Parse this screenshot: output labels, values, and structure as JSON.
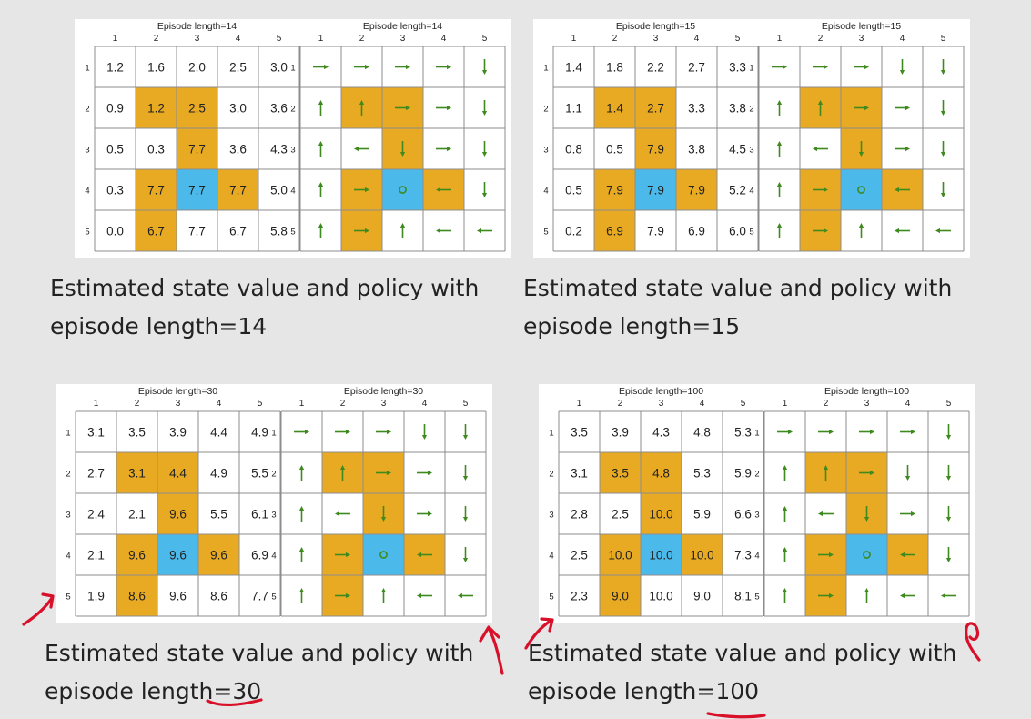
{
  "colors": {
    "obstacle": "#e8aa22",
    "target": "#4bb9ea",
    "arrow": "#3f8a1e",
    "grid": "#8c8c8c",
    "annotation": "#d8102a"
  },
  "col_labels": [
    "1",
    "2",
    "3",
    "4",
    "5"
  ],
  "row_labels": [
    "1",
    "2",
    "3",
    "4",
    "5"
  ],
  "cell_types": [
    [
      "n",
      "n",
      "n",
      "n",
      "n"
    ],
    [
      "n",
      "o",
      "o",
      "n",
      "n"
    ],
    [
      "n",
      "n",
      "o",
      "n",
      "n"
    ],
    [
      "n",
      "o",
      "t",
      "o",
      "n"
    ],
    [
      "n",
      "o",
      "n",
      "n",
      "n"
    ]
  ],
  "experiments": [
    {
      "grid_title": "Episode length=14",
      "policy_title": "Episode length=14",
      "values": [
        [
          "1.2",
          "1.6",
          "2.0",
          "2.5",
          "3.0"
        ],
        [
          "0.9",
          "1.2",
          "2.5",
          "3.0",
          "3.6"
        ],
        [
          "0.5",
          "0.3",
          "7.7",
          "3.6",
          "4.3"
        ],
        [
          "0.3",
          "7.7",
          "7.7",
          "7.7",
          "5.0"
        ],
        [
          "0.0",
          "6.7",
          "7.7",
          "6.7",
          "5.8"
        ]
      ],
      "policy": [
        [
          "right",
          "right",
          "right",
          "right",
          "down"
        ],
        [
          "up",
          "up",
          "right",
          "right",
          "down"
        ],
        [
          "up",
          "left",
          "down",
          "right",
          "down"
        ],
        [
          "up",
          "right",
          "stay",
          "left",
          "down"
        ],
        [
          "up",
          "right",
          "up",
          "left",
          "left"
        ]
      ],
      "caption_line1": "Estimated state value and policy with",
      "caption_line2": "episode length=14"
    },
    {
      "grid_title": "Episode length=15",
      "policy_title": "Episode length=15",
      "values": [
        [
          "1.4",
          "1.8",
          "2.2",
          "2.7",
          "3.3"
        ],
        [
          "1.1",
          "1.4",
          "2.7",
          "3.3",
          "3.8"
        ],
        [
          "0.8",
          "0.5",
          "7.9",
          "3.8",
          "4.5"
        ],
        [
          "0.5",
          "7.9",
          "7.9",
          "7.9",
          "5.2"
        ],
        [
          "0.2",
          "6.9",
          "7.9",
          "6.9",
          "6.0"
        ]
      ],
      "policy": [
        [
          "right",
          "right",
          "right",
          "down",
          "down"
        ],
        [
          "up",
          "up",
          "right",
          "right",
          "down"
        ],
        [
          "up",
          "left",
          "down",
          "right",
          "down"
        ],
        [
          "up",
          "right",
          "stay",
          "left",
          "down"
        ],
        [
          "up",
          "right",
          "up",
          "left",
          "left"
        ]
      ],
      "caption_line1": "Estimated state value and policy with",
      "caption_line2": "episode length=15"
    },
    {
      "grid_title": "Episode length=30",
      "policy_title": "Episode length=30",
      "values": [
        [
          "3.1",
          "3.5",
          "3.9",
          "4.4",
          "4.9"
        ],
        [
          "2.7",
          "3.1",
          "4.4",
          "4.9",
          "5.5"
        ],
        [
          "2.4",
          "2.1",
          "9.6",
          "5.5",
          "6.1"
        ],
        [
          "2.1",
          "9.6",
          "9.6",
          "9.6",
          "6.9"
        ],
        [
          "1.9",
          "8.6",
          "9.6",
          "8.6",
          "7.7"
        ]
      ],
      "policy": [
        [
          "right",
          "right",
          "right",
          "down",
          "down"
        ],
        [
          "up",
          "up",
          "right",
          "right",
          "down"
        ],
        [
          "up",
          "left",
          "down",
          "right",
          "down"
        ],
        [
          "up",
          "right",
          "stay",
          "left",
          "down"
        ],
        [
          "up",
          "right",
          "up",
          "left",
          "left"
        ]
      ],
      "caption_line1": "Estimated state value and policy with",
      "caption_line2": "episode length=30"
    },
    {
      "grid_title": "Episode length=100",
      "policy_title": "Episode length=100",
      "values": [
        [
          "3.5",
          "3.9",
          "4.3",
          "4.8",
          "5.3"
        ],
        [
          "3.1",
          "3.5",
          "4.8",
          "5.3",
          "5.9"
        ],
        [
          "2.8",
          "2.5",
          "10.0",
          "5.9",
          "6.6"
        ],
        [
          "2.5",
          "10.0",
          "10.0",
          "10.0",
          "7.3"
        ],
        [
          "2.3",
          "9.0",
          "10.0",
          "9.0",
          "8.1"
        ]
      ],
      "policy": [
        [
          "right",
          "right",
          "right",
          "right",
          "down"
        ],
        [
          "up",
          "up",
          "right",
          "down",
          "down"
        ],
        [
          "up",
          "left",
          "down",
          "right",
          "down"
        ],
        [
          "up",
          "right",
          "stay",
          "left",
          "down"
        ],
        [
          "up",
          "right",
          "up",
          "left",
          "left"
        ]
      ],
      "caption_line1": "Estimated state value and policy with",
      "caption_line2": "episode length=100"
    }
  ]
}
